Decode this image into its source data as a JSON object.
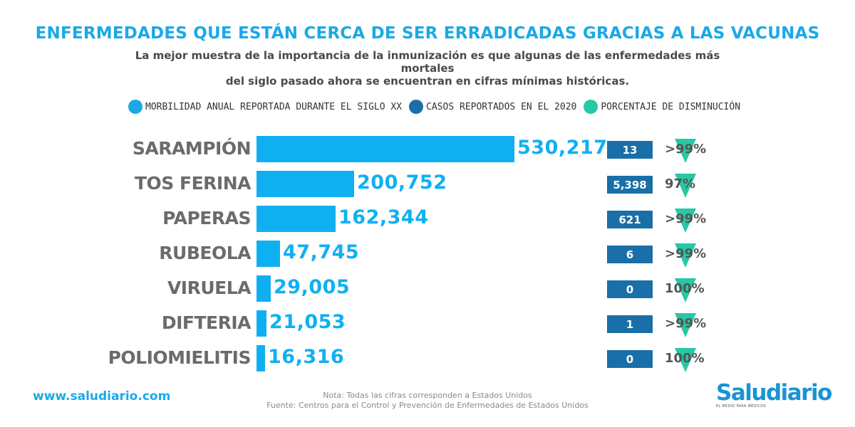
{
  "title": "ENFERMEDADES QUE ESTÁN CERCA DE SER ERRADICADAS GRACIAS A LAS VACUNAS",
  "subtitle_line1": "La mejor muestra de la importancia de la inmunización es que algunas de las enfermedades más mortales",
  "subtitle_line2": "del siglo pasado ahora se encuentran en cifras mínimas históricas.",
  "legend": [
    {
      "label": "MORBILIDAD ANUAL REPORTADA DURANTE EL SIGLO XX",
      "color": "#1ba9e6"
    },
    {
      "label": "CASOS REPORTADOS EN EL 2020",
      "color": "#1a6fa8"
    },
    {
      "label": "PORCENTAJE DE DISMINUCIÓN",
      "color": "#27c8a5"
    }
  ],
  "chart_data": {
    "type": "bar",
    "orientation": "horizontal",
    "categories": [
      "SARAMPIÓN",
      "TOS FERINA",
      "PAPERAS",
      "RUBEOLA",
      "VIRUELA",
      "DIFTERIA",
      "POLIOMIELITIS"
    ],
    "series": [
      {
        "name": "MORBILIDAD ANUAL REPORTADA DURANTE EL SIGLO XX",
        "values": [
          530217,
          200752,
          162344,
          47745,
          29005,
          21053,
          16316
        ],
        "labels": [
          "530,217",
          "200,752",
          "162,344",
          "47,745",
          "29,005",
          "21,053",
          "16,316"
        ]
      },
      {
        "name": "CASOS REPORTADOS EN EL 2020",
        "values": [
          13,
          5398,
          621,
          6,
          0,
          1,
          0
        ],
        "labels": [
          "13",
          "5,398",
          "621",
          "6",
          "0",
          "1",
          "0"
        ]
      },
      {
        "name": "PORCENTAJE DE DISMINUCIÓN",
        "labels": [
          ">99%",
          "97%",
          ">99%",
          ">99%",
          "100%",
          ">99%",
          "100%"
        ]
      }
    ],
    "colors": {
      "bar": "#0fb0f2",
      "cases": "#1a6fa8",
      "decrease": "#27c8a5"
    },
    "grid": false
  },
  "footer": {
    "url": "www.saludiario.com",
    "note_line1": "Nota: Todas las cifras corresponden a Estados Unidos",
    "note_line2": "Fuente: Centros para el Control y Prevención de Enfermedades de Estados Unidos",
    "logo_name": "Saludiario",
    "logo_tag": "EL MEDIO PARA MÉDICOS"
  }
}
